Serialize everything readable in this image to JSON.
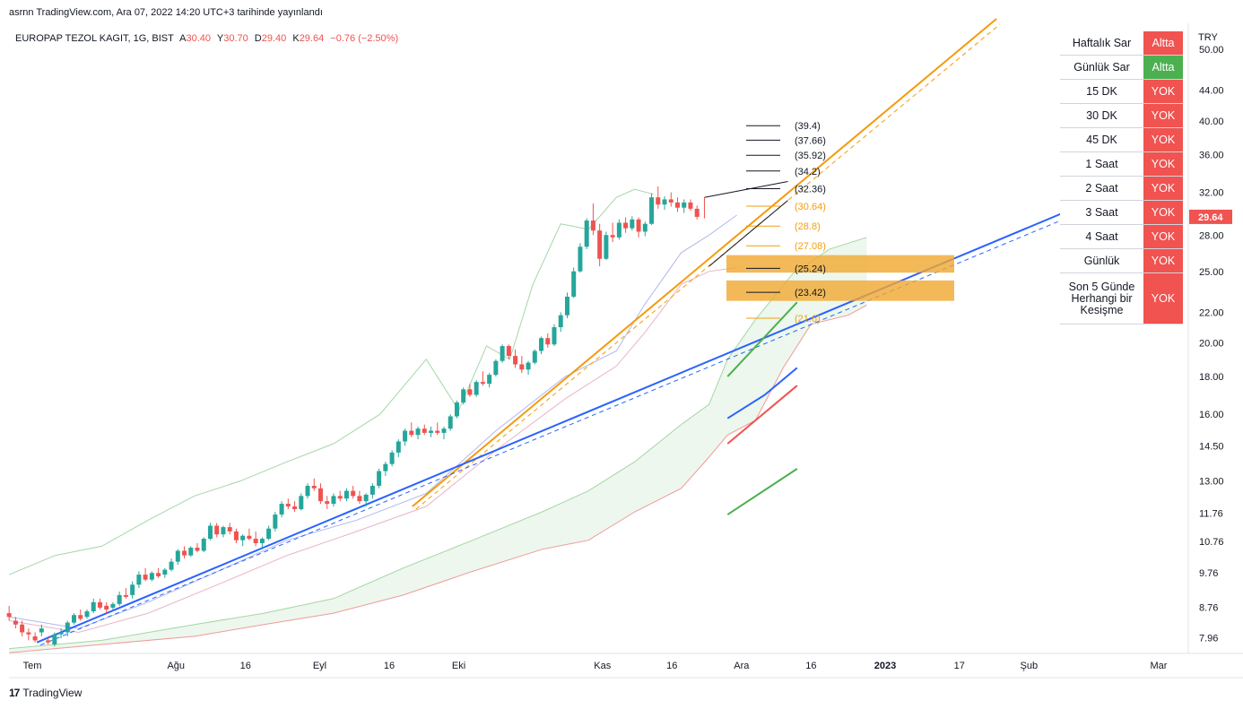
{
  "publish_line": "asrnn TradingView.com, Ara 07, 2022 14:20 UTC+3 tarihinde yayınlandı",
  "footer_logo": "TradingView",
  "footer_mark": "17",
  "legend": {
    "symbol": "EUROPAP TEZOL KAGIT, 1G, BIST",
    "o_label": "A",
    "o_value": "30.40",
    "h_label": "Y",
    "h_value": "30.70",
    "l_label": "D",
    "l_value": "29.40",
    "c_label": "K",
    "c_value": "29.64",
    "change": "−0.76 (−2.50%)"
  },
  "signal_table": {
    "rows": [
      {
        "label": "Haftalık Sar",
        "value": "Altta",
        "color": "#f05350"
      },
      {
        "label": "Günlük Sar",
        "value": "Altta",
        "color": "#4caf50"
      },
      {
        "label": "15 DK",
        "value": "YOK",
        "color": "#f05350"
      },
      {
        "label": "30 DK",
        "value": "YOK",
        "color": "#f05350"
      },
      {
        "label": "45 DK",
        "value": "YOK",
        "color": "#f05350"
      },
      {
        "label": "1 Saat",
        "value": "YOK",
        "color": "#f05350"
      },
      {
        "label": "2 Saat",
        "value": "YOK",
        "color": "#f05350"
      },
      {
        "label": "3 Saat",
        "value": "YOK",
        "color": "#f05350"
      },
      {
        "label": "4 Saat",
        "value": "YOK",
        "color": "#f05350"
      },
      {
        "label": "Günlük",
        "value": "YOK",
        "color": "#f05350"
      },
      {
        "label": "Son 5 Günde Herhangi bir Kesişme",
        "value": "YOK",
        "color": "#f05350"
      }
    ]
  },
  "chart_data": {
    "type": "candlestick",
    "currency_label": "TRY",
    "y_scale": "log",
    "ylim": [
      7.5,
      55
    ],
    "y_ticks": [
      "50.00",
      "44.00",
      "40.00",
      "36.00",
      "32.00",
      "28.00",
      "25.00",
      "22.00",
      "20.00",
      "18.00",
      "16.00",
      "14.50",
      "13.00",
      "11.76",
      "10.76",
      "9.76",
      "8.76",
      "7.96"
    ],
    "y_tick_values": [
      50,
      44,
      40,
      36,
      32,
      28,
      25,
      22,
      20,
      18,
      16,
      14.5,
      13,
      11.76,
      10.76,
      9.76,
      8.76,
      7.96
    ],
    "last_price": "29.64",
    "x_ticks": [
      "Tem",
      "Ağu",
      "16",
      "Eyl",
      "16",
      "Eki",
      "Kas",
      "16",
      "Ara",
      "16",
      "2023",
      "17",
      "Şub",
      "Mar"
    ],
    "x_tick_days": [
      0,
      31,
      46,
      62,
      77,
      92,
      123,
      138,
      153,
      168,
      184,
      200,
      215,
      243
    ],
    "candles": {
      "start_day": -5,
      "step_days": 1.4,
      "ohlc": [
        [
          8.6,
          8.8,
          8.4,
          8.5
        ],
        [
          8.4,
          8.5,
          8.2,
          8.3
        ],
        [
          8.3,
          8.4,
          8.0,
          8.1
        ],
        [
          8.1,
          8.2,
          7.9,
          8.05
        ],
        [
          8.0,
          8.1,
          7.85,
          7.9
        ],
        [
          8.1,
          8.3,
          8.0,
          8.2
        ],
        [
          7.9,
          8.0,
          7.8,
          7.85
        ],
        [
          7.8,
          8.1,
          7.75,
          8.05
        ],
        [
          8.05,
          8.2,
          7.95,
          8.1
        ],
        [
          8.1,
          8.4,
          8.0,
          8.35
        ],
        [
          8.35,
          8.6,
          8.3,
          8.55
        ],
        [
          8.55,
          8.7,
          8.4,
          8.45
        ],
        [
          8.5,
          8.7,
          8.45,
          8.65
        ],
        [
          8.65,
          9.0,
          8.6,
          8.9
        ],
        [
          8.9,
          9.0,
          8.7,
          8.75
        ],
        [
          8.8,
          8.9,
          8.6,
          8.7
        ],
        [
          8.75,
          8.9,
          8.7,
          8.85
        ],
        [
          8.85,
          9.2,
          8.8,
          9.1
        ],
        [
          9.1,
          9.3,
          9.0,
          9.05
        ],
        [
          9.1,
          9.5,
          9.0,
          9.4
        ],
        [
          9.4,
          9.8,
          9.3,
          9.7
        ],
        [
          9.7,
          9.9,
          9.5,
          9.55
        ],
        [
          9.55,
          9.8,
          9.5,
          9.75
        ],
        [
          9.75,
          9.9,
          9.6,
          9.65
        ],
        [
          9.7,
          9.9,
          9.6,
          9.85
        ],
        [
          9.85,
          10.2,
          9.8,
          10.1
        ],
        [
          10.1,
          10.5,
          10.0,
          10.45
        ],
        [
          10.45,
          10.6,
          10.2,
          10.3
        ],
        [
          10.3,
          10.6,
          10.25,
          10.55
        ],
        [
          10.55,
          10.7,
          10.4,
          10.45
        ],
        [
          10.45,
          10.9,
          10.4,
          10.85
        ],
        [
          10.85,
          11.4,
          10.8,
          11.3
        ],
        [
          11.3,
          11.4,
          10.9,
          11.0
        ],
        [
          11.0,
          11.3,
          10.9,
          11.25
        ],
        [
          11.25,
          11.4,
          11.0,
          11.1
        ],
        [
          11.1,
          11.2,
          10.7,
          10.8
        ],
        [
          10.8,
          11.0,
          10.6,
          10.95
        ],
        [
          10.95,
          11.2,
          10.8,
          10.85
        ],
        [
          10.85,
          11.1,
          10.6,
          10.7
        ],
        [
          10.7,
          10.9,
          10.5,
          10.85
        ],
        [
          10.85,
          11.3,
          10.8,
          11.2
        ],
        [
          11.2,
          11.8,
          11.1,
          11.7
        ],
        [
          11.7,
          12.2,
          11.6,
          12.1
        ],
        [
          12.1,
          12.3,
          11.9,
          12.0
        ],
        [
          12.0,
          12.2,
          11.8,
          11.9
        ],
        [
          11.9,
          12.5,
          11.85,
          12.4
        ],
        [
          12.4,
          12.9,
          12.3,
          12.8
        ],
        [
          12.8,
          13.1,
          12.6,
          12.7
        ],
        [
          12.7,
          12.9,
          12.1,
          12.2
        ],
        [
          12.2,
          12.4,
          11.9,
          12.1
        ],
        [
          12.1,
          12.5,
          12.0,
          12.4
        ],
        [
          12.4,
          12.6,
          12.2,
          12.3
        ],
        [
          12.3,
          12.7,
          12.2,
          12.6
        ],
        [
          12.6,
          12.8,
          12.3,
          12.4
        ],
        [
          12.4,
          12.6,
          12.1,
          12.2
        ],
        [
          12.2,
          12.5,
          12.0,
          12.45
        ],
        [
          12.45,
          12.9,
          12.3,
          12.8
        ],
        [
          12.8,
          13.5,
          12.7,
          13.4
        ],
        [
          13.4,
          13.8,
          13.2,
          13.7
        ],
        [
          13.7,
          14.3,
          13.6,
          14.2
        ],
        [
          14.2,
          14.8,
          14.0,
          14.7
        ],
        [
          14.7,
          15.3,
          14.5,
          15.2
        ],
        [
          15.2,
          15.6,
          14.9,
          15.0
        ],
        [
          15.0,
          15.4,
          14.8,
          15.3
        ],
        [
          15.3,
          15.5,
          15.0,
          15.1
        ],
        [
          15.1,
          15.4,
          14.9,
          15.2
        ],
        [
          15.2,
          15.6,
          15.0,
          15.1
        ],
        [
          15.1,
          15.4,
          14.8,
          15.3
        ],
        [
          15.3,
          16.0,
          15.2,
          15.9
        ],
        [
          15.9,
          16.7,
          15.8,
          16.6
        ],
        [
          16.6,
          17.4,
          16.5,
          17.3
        ],
        [
          17.3,
          17.6,
          16.9,
          17.0
        ],
        [
          17.0,
          17.8,
          16.9,
          17.7
        ],
        [
          17.7,
          18.3,
          17.5,
          17.6
        ],
        [
          17.6,
          18.2,
          17.4,
          18.1
        ],
        [
          18.1,
          19.0,
          18.0,
          18.9
        ],
        [
          18.9,
          19.9,
          18.8,
          19.8
        ],
        [
          19.8,
          19.9,
          19.0,
          19.2
        ],
        [
          19.2,
          19.6,
          18.5,
          18.7
        ],
        [
          18.7,
          19.2,
          18.2,
          18.4
        ],
        [
          18.4,
          18.9,
          18.1,
          18.8
        ],
        [
          18.8,
          19.6,
          18.7,
          19.5
        ],
        [
          19.5,
          20.4,
          19.3,
          20.3
        ],
        [
          20.3,
          20.6,
          19.7,
          19.9
        ],
        [
          19.9,
          21.2,
          19.8,
          21.0
        ],
        [
          21.0,
          22.0,
          20.7,
          21.8
        ],
        [
          21.8,
          23.4,
          21.6,
          23.1
        ],
        [
          23.1,
          25.3,
          23.0,
          25.0
        ],
        [
          25.0,
          27.3,
          24.9,
          27.0
        ],
        [
          27.0,
          29.5,
          26.8,
          29.3
        ],
        [
          29.3,
          30.9,
          28.0,
          28.4
        ],
        [
          28.4,
          29.0,
          25.4,
          26.0
        ],
        [
          26.0,
          28.3,
          25.9,
          28.0
        ],
        [
          28.0,
          29.1,
          27.4,
          27.8
        ],
        [
          27.8,
          29.4,
          27.6,
          29.1
        ],
        [
          29.1,
          29.6,
          28.2,
          28.6
        ],
        [
          28.6,
          29.7,
          28.4,
          29.4
        ],
        [
          29.4,
          29.6,
          27.8,
          28.3
        ],
        [
          28.3,
          29.2,
          27.9,
          29.0
        ],
        [
          29.0,
          31.9,
          28.9,
          31.5
        ],
        [
          31.5,
          32.6,
          30.4,
          30.8
        ],
        [
          30.8,
          31.6,
          30.3,
          31.3
        ],
        [
          31.3,
          32.0,
          30.6,
          31.0
        ],
        [
          31.0,
          31.5,
          30.1,
          30.5
        ],
        [
          30.5,
          31.3,
          30.0,
          31.0
        ],
        [
          31.0,
          31.3,
          30.2,
          30.4
        ],
        [
          30.4,
          30.7,
          29.4,
          29.64
        ]
      ]
    },
    "fib_levels": [
      {
        "label": "(39.4)",
        "value": 39.4,
        "color": "#131722"
      },
      {
        "label": "(37.66)",
        "value": 37.66,
        "color": "#131722"
      },
      {
        "label": "(35.92)",
        "value": 35.92,
        "color": "#131722"
      },
      {
        "label": "(34.2)",
        "value": 34.2,
        "color": "#131722"
      },
      {
        "label": "(32.36)",
        "value": 32.36,
        "color": "#131722"
      },
      {
        "label": "(30.64)",
        "value": 30.64,
        "color": "#f59e0b"
      },
      {
        "label": "(28.8)",
        "value": 28.8,
        "color": "#f59e0b"
      },
      {
        "label": "(27.08)",
        "value": 27.08,
        "color": "#f59e0b"
      },
      {
        "label": "(25.24)",
        "value": 25.24,
        "color": "#131722"
      },
      {
        "label": "(23.42)",
        "value": 23.42,
        "color": "#131722"
      },
      {
        "label": "(21.6)",
        "value": 21.6,
        "color": "#f59e0b"
      }
    ],
    "zones": [
      {
        "from": 24.9,
        "to": 26.3,
        "color": "#f0a830"
      },
      {
        "from": 22.8,
        "to": 24.3,
        "color": "#f0a830"
      }
    ],
    "trendlines": [
      {
        "name": "orange",
        "color": "#f59a0b",
        "points": [
          [
            82,
            12.0
          ],
          [
            208,
            55
          ]
        ]
      },
      {
        "name": "blue",
        "color": "#2962ff",
        "points": [
          [
            1,
            7.85
          ],
          [
            243,
            34
          ]
        ]
      }
    ],
    "ichimoku": {
      "span_a": [
        [
          -5,
          7.7
        ],
        [
          15,
          7.9
        ],
        [
          35,
          8.3
        ],
        [
          50,
          8.6
        ],
        [
          65,
          9.0
        ],
        [
          80,
          9.9
        ],
        [
          95,
          10.8
        ],
        [
          110,
          11.8
        ],
        [
          120,
          12.6
        ],
        [
          130,
          13.8
        ],
        [
          140,
          15.5
        ],
        [
          146,
          16.5
        ],
        [
          150,
          19.0
        ],
        [
          156,
          21.5
        ],
        [
          164,
          24.8
        ],
        [
          172,
          26.8
        ],
        [
          180,
          27.8
        ]
      ],
      "span_b": [
        [
          -5,
          7.6
        ],
        [
          15,
          7.8
        ],
        [
          35,
          8.0
        ],
        [
          50,
          8.3
        ],
        [
          65,
          8.6
        ],
        [
          80,
          9.1
        ],
        [
          95,
          9.8
        ],
        [
          110,
          10.5
        ],
        [
          120,
          10.8
        ],
        [
          130,
          11.8
        ],
        [
          140,
          12.7
        ],
        [
          146,
          14.0
        ],
        [
          150,
          15.0
        ],
        [
          156,
          15.7
        ],
        [
          162,
          18.5
        ],
        [
          168,
          21.2
        ],
        [
          176,
          21.8
        ],
        [
          180,
          22.5
        ]
      ],
      "lagging": [
        [
          -5,
          9.7
        ],
        [
          5,
          10.3
        ],
        [
          15,
          10.6
        ],
        [
          25,
          11.5
        ],
        [
          35,
          12.4
        ],
        [
          45,
          13.0
        ],
        [
          55,
          13.8
        ],
        [
          65,
          14.6
        ],
        [
          75,
          16.0
        ],
        [
          85,
          19.0
        ],
        [
          92,
          16.2
        ],
        [
          98,
          19.8
        ],
        [
          103,
          19.0
        ],
        [
          108,
          24.0
        ],
        [
          114,
          29.0
        ],
        [
          120,
          28.5
        ],
        [
          126,
          31.5
        ],
        [
          130,
          32.3
        ],
        [
          134,
          31.8
        ]
      ],
      "tenkan": [
        [
          -5,
          8.5
        ],
        [
          10,
          8.2
        ],
        [
          25,
          8.9
        ],
        [
          40,
          9.8
        ],
        [
          55,
          10.8
        ],
        [
          70,
          11.5
        ],
        [
          85,
          12.5
        ],
        [
          100,
          15.2
        ],
        [
          115,
          18.0
        ],
        [
          126,
          19.5
        ],
        [
          132,
          22.5
        ],
        [
          140,
          26.5
        ],
        [
          146,
          28.0
        ],
        [
          152,
          29.8
        ]
      ],
      "kijun": [
        [
          -5,
          8.4
        ],
        [
          10,
          8.1
        ],
        [
          25,
          8.6
        ],
        [
          40,
          9.4
        ],
        [
          55,
          10.3
        ],
        [
          70,
          11.1
        ],
        [
          85,
          12.0
        ],
        [
          100,
          14.3
        ],
        [
          115,
          16.8
        ],
        [
          126,
          18.6
        ],
        [
          132,
          20.6
        ],
        [
          140,
          24.0
        ],
        [
          146,
          25.0
        ],
        [
          152,
          25.3
        ]
      ]
    },
    "triangle": {
      "upper": [
        [
          145,
          31.5
        ],
        [
          163,
          33.1
        ]
      ],
      "lower": [
        [
          146,
          25.4
        ],
        [
          163,
          31.2
        ]
      ]
    },
    "drawn_segments": [
      {
        "color": "#4caf50",
        "points": [
          [
            150,
            18.0
          ],
          [
            165,
            22.7
          ]
        ]
      },
      {
        "color": "#2962ff",
        "points": [
          [
            150,
            15.8
          ],
          [
            158,
            17.0
          ],
          [
            165,
            18.5
          ]
        ]
      },
      {
        "color": "#ef5350",
        "points": [
          [
            150,
            14.6
          ],
          [
            165,
            17.5
          ]
        ]
      },
      {
        "color": "#4caf50",
        "points": [
          [
            150,
            11.7
          ],
          [
            165,
            13.5
          ]
        ]
      }
    ]
  }
}
